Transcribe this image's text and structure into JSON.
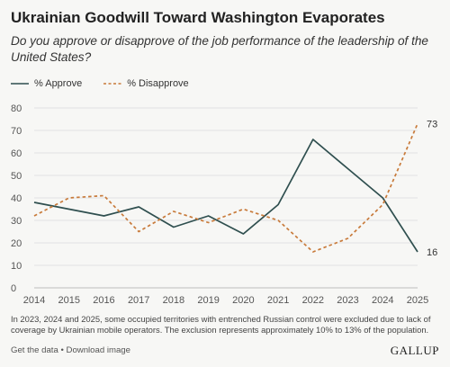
{
  "header": {
    "title": "Ukrainian Goodwill Toward Washington Evaporates",
    "subtitle": "Do you approve or disapprove of the job performance of the leadership of the United States?"
  },
  "chart_data": {
    "type": "line",
    "x": [
      2014,
      2015,
      2016,
      2017,
      2018,
      2019,
      2020,
      2021,
      2022,
      2023,
      2024,
      2025
    ],
    "series": [
      {
        "name": "% Approve",
        "values": [
          38,
          35,
          32,
          36,
          27,
          32,
          24,
          37,
          66,
          53,
          40,
          16
        ],
        "color": "#2f4f4f",
        "style": "solid"
      },
      {
        "name": "% Disapprove",
        "values": [
          32,
          40,
          41,
          25,
          34,
          29,
          35,
          30,
          16,
          22,
          37,
          73
        ],
        "color": "#c87a3a",
        "style": "dashed"
      }
    ],
    "end_labels": [
      {
        "series": "% Disapprove",
        "text": "73"
      },
      {
        "series": "% Approve",
        "text": "16"
      }
    ],
    "yticks": [
      "0",
      "10",
      "20",
      "30",
      "40",
      "50",
      "60",
      "70",
      "80"
    ],
    "ylim": [
      0,
      80
    ],
    "xlim": [
      2014,
      2025
    ],
    "grid": true,
    "legend": "top-left"
  },
  "footnote": "In 2023, 2024 and 2025, some occupied territories with entrenched Russian control were excluded due to lack of coverage by Ukrainian mobile operators. The exclusion represents approximately 10% to 13% of the population.",
  "footer": {
    "get_data": "Get the data",
    "separator": " • ",
    "download": "Download image",
    "brand": "GALLUP"
  }
}
